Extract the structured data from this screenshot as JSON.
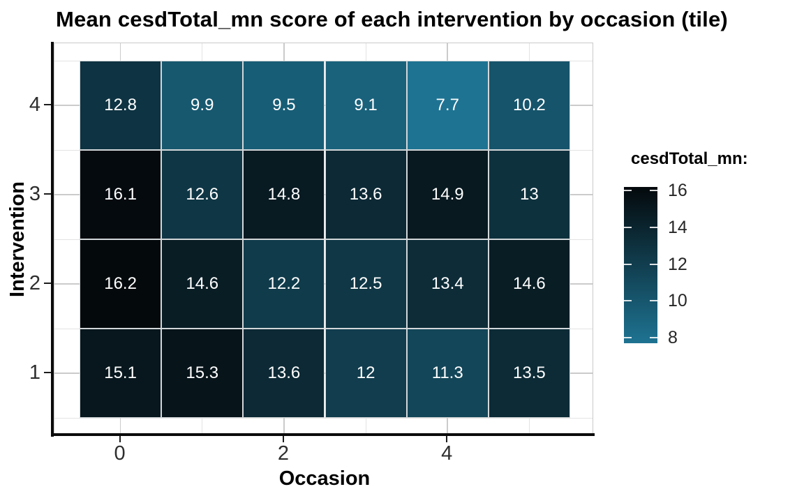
{
  "chart_data": {
    "type": "heatmap",
    "title": "Mean cesdTotal_mn score of each intervention by occasion (tile)",
    "xlabel": "Occasion",
    "ylabel": "Intervention",
    "x": [
      0,
      1,
      2,
      3,
      4,
      5
    ],
    "rows": [
      {
        "intervention": 4,
        "values": [
          12.8,
          9.9,
          9.5,
          9.1,
          7.7,
          10.2
        ]
      },
      {
        "intervention": 3,
        "values": [
          16.1,
          12.6,
          14.8,
          13.6,
          14.9,
          13
        ]
      },
      {
        "intervention": 2,
        "values": [
          16.2,
          14.6,
          12.2,
          12.5,
          13.4,
          14.6
        ]
      },
      {
        "intervention": 1,
        "values": [
          15.1,
          15.3,
          13.6,
          12,
          11.3,
          13.5
        ]
      }
    ],
    "x_axis": {
      "ticks": [
        0,
        2,
        4
      ],
      "minor": [
        1,
        3,
        5
      ],
      "range": [
        -0.5,
        5.5
      ]
    },
    "y_axis": {
      "ticks": [
        4,
        3,
        2,
        1
      ],
      "minor": [
        4.5,
        3.5,
        2.5,
        1.5,
        0.5
      ],
      "range": [
        0.5,
        4.5
      ]
    },
    "legend": {
      "title": "cesdTotal_mn:",
      "ticks": [
        16,
        14,
        12,
        10,
        8
      ],
      "min": 7.7,
      "max": 16.2,
      "position": "right"
    },
    "color_scale": {
      "high_value": 16.2,
      "low_value": 7.7,
      "high_color": "#04090C",
      "low_color": "#1E7392"
    },
    "grid": true
  }
}
